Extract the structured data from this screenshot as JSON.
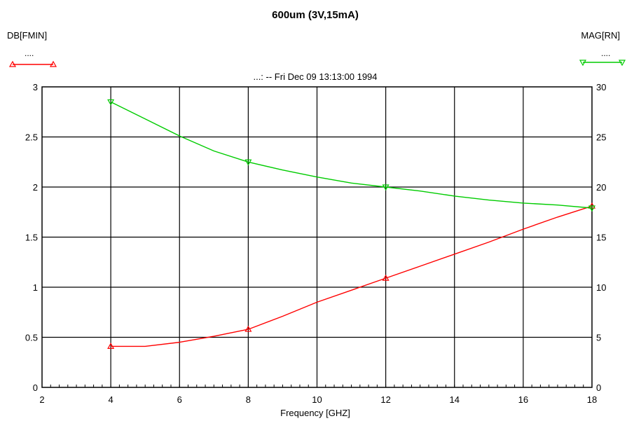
{
  "chart_data": {
    "type": "line",
    "title": "600um (3V,15mA)",
    "subtitle": "...: -- Fri Dec 09 13:13:00 1994",
    "xlabel": "Frequency [GHZ]",
    "ylabel_left": "DB[FMIN]",
    "ylabel_right": "MAG[RN]",
    "legend_left_dots": "....",
    "legend_right_dots": "....",
    "xlim": [
      2,
      18
    ],
    "ylim_left": [
      0,
      3
    ],
    "ylim_right": [
      0,
      30
    ],
    "x_ticks": [
      2,
      4,
      6,
      8,
      10,
      12,
      14,
      16,
      18
    ],
    "y_left_ticks": [
      "0",
      "0.5",
      "1",
      "1.5",
      "2",
      "2.5",
      "3"
    ],
    "y_right_ticks": [
      "0",
      "5",
      "10",
      "15",
      "20",
      "25",
      "30"
    ],
    "grid": true,
    "series": [
      {
        "name": "DB[FMIN]",
        "axis": "left",
        "color": "#ff0000",
        "marker": "triangle-up",
        "markers_x": [
          4,
          8,
          12,
          18
        ],
        "x": [
          4,
          5,
          6,
          7,
          8,
          9,
          10,
          11,
          12,
          13,
          14,
          15,
          16,
          17,
          18
        ],
        "values": [
          0.41,
          0.41,
          0.45,
          0.51,
          0.58,
          0.71,
          0.85,
          0.97,
          1.09,
          1.21,
          1.33,
          1.45,
          1.58,
          1.7,
          1.81
        ]
      },
      {
        "name": "MAG[RN]",
        "axis": "right",
        "color": "#00cc00",
        "marker": "triangle-down",
        "markers_x": [
          4,
          8,
          12,
          18
        ],
        "x": [
          4,
          5,
          6,
          7,
          8,
          9,
          10,
          11,
          12,
          13,
          14,
          15,
          16,
          17,
          18
        ],
        "values": [
          28.5,
          26.8,
          25.1,
          23.6,
          22.5,
          21.7,
          21.0,
          20.4,
          20.0,
          19.6,
          19.1,
          18.7,
          18.4,
          18.2,
          17.9
        ]
      }
    ]
  }
}
